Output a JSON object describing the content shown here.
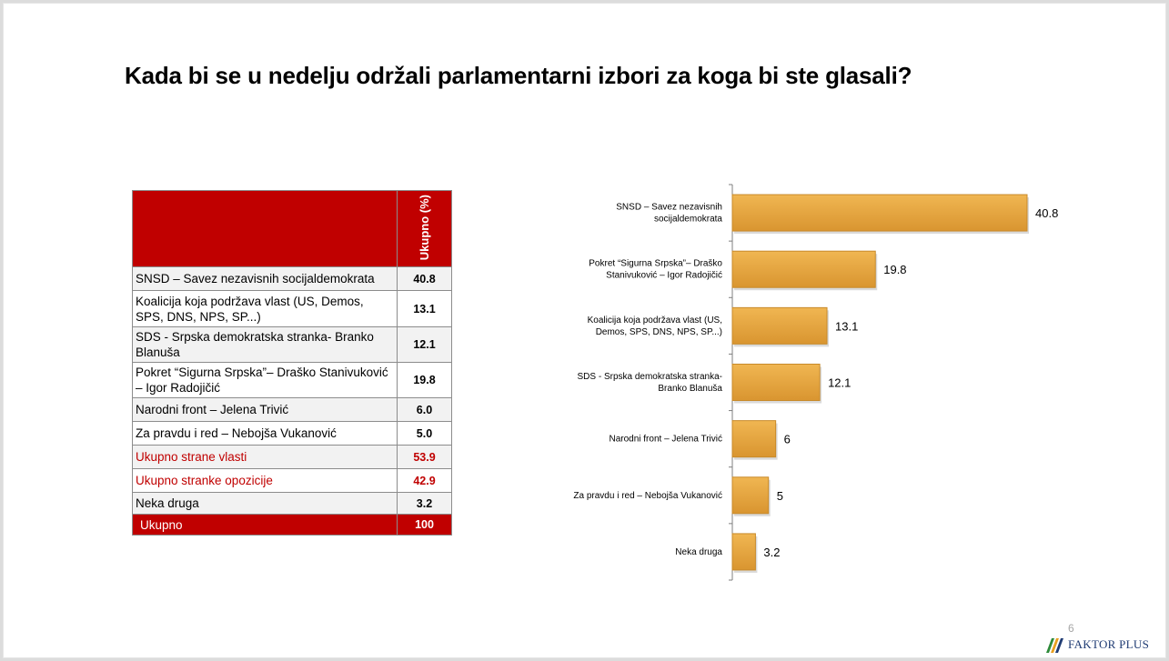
{
  "title": "Kada bi se u nedelju održali parlamentarni izbori za koga bi ste glasali?",
  "table": {
    "header": "Ukupno (%)",
    "rows": [
      {
        "label": "SNSD – Savez nezavisnih socijaldemokrata",
        "value": "40.8"
      },
      {
        "label": "Koalicija koja podržava vlast (US, Demos, SPS, DNS, NPS, SP...)",
        "value": "13.1"
      },
      {
        "label": "SDS - Srpska demokratska stranka- Branko Blanuša",
        "value": "12.1"
      },
      {
        "label": "Pokret “Sigurna Srpska”– Draško Stanivuković – Igor Radojičić",
        "value": "19.8"
      },
      {
        "label": "Narodni front – Jelena Trivić",
        "value": "6.0"
      },
      {
        "label": "Za pravdu i red – Nebojša Vukanović",
        "value": "5.0"
      },
      {
        "label": "Ukupno strane vlasti",
        "value": "53.9"
      },
      {
        "label": "Ukupno stranke opozicije",
        "value": "42.9"
      },
      {
        "label": "Neka druga",
        "value": "3.2"
      },
      {
        "label": "Ukupno",
        "value": "100"
      }
    ]
  },
  "chart_data": {
    "type": "bar",
    "orientation": "horizontal",
    "categories": [
      [
        "SNSD – Savez nezavisnih",
        "socijaldemokrata"
      ],
      [
        "Pokret “Sigurna Srpska”– Draško",
        "Stanivuković – Igor Radojičić"
      ],
      [
        "Koalicija koja podržava vlast (US,",
        "Demos, SPS, DNS, NPS, SP...)"
      ],
      [
        "SDS - Srpska demokratska stranka-",
        "Branko Blanuša"
      ],
      [
        "Narodni front – Jelena Trivić"
      ],
      [
        "Za pravdu i red – Nebojša Vukanović"
      ],
      [
        "Neka druga"
      ]
    ],
    "values": [
      40.8,
      19.8,
      13.1,
      12.1,
      6,
      5,
      3.2
    ],
    "data_labels": [
      "40.8",
      "19.8",
      "13.1",
      "12.1",
      "6",
      "5",
      "3.2"
    ],
    "bar_color": "#e3a23b",
    "title": "",
    "xlabel": "",
    "ylabel": "",
    "xlim": [
      0,
      40.8
    ],
    "grid": false,
    "legend": "none"
  },
  "footer": {
    "page_number": "6",
    "logo_text": "FAKTOR PLUS"
  }
}
